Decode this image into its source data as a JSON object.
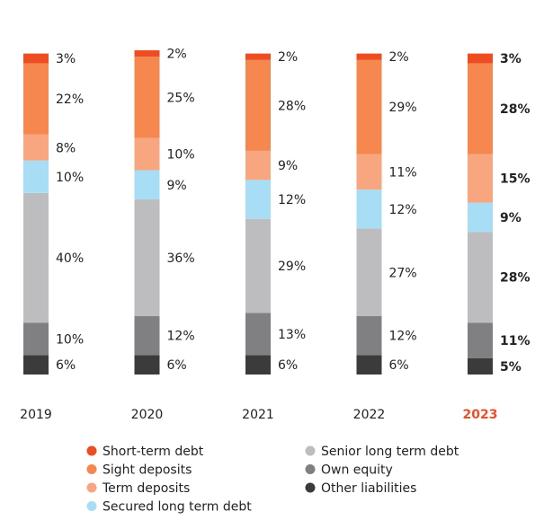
{
  "chart_data": {
    "type": "stacked_bar",
    "categories": [
      "2019",
      "2020",
      "2021",
      "2022",
      "2023"
    ],
    "series": [
      {
        "name": "Short-term debt",
        "color": "#ee4d22",
        "values": [
          3,
          2,
          2,
          2,
          3
        ],
        "value_labels": [
          "3%",
          "2%",
          "2%",
          "2%",
          "3%"
        ]
      },
      {
        "name": "Sight deposits",
        "color": "#f5874f",
        "values": [
          22,
          25,
          28,
          29,
          28
        ],
        "value_labels": [
          "22%",
          "25%",
          "28%",
          "29%",
          "28%"
        ]
      },
      {
        "name": "Term deposits",
        "color": "#f7a67f",
        "values": [
          8,
          10,
          9,
          11,
          15
        ],
        "value_labels": [
          "8%",
          "10%",
          "9%",
          "11%",
          "15%"
        ]
      },
      {
        "name": "Secured long term debt",
        "color": "#a8def5",
        "values": [
          10,
          9,
          12,
          12,
          9
        ],
        "value_labels": [
          "10%",
          "9%",
          "12%",
          "12%",
          "9%"
        ]
      },
      {
        "name": "Senior long term debt",
        "color": "#bdbdc0",
        "values": [
          40,
          36,
          29,
          27,
          28
        ],
        "value_labels": [
          "40%",
          "36%",
          "29%",
          "27%",
          "28%"
        ]
      },
      {
        "name": "Own equity",
        "color": "#808082",
        "values": [
          10,
          12,
          13,
          12,
          11
        ],
        "value_labels": [
          "10%",
          "12%",
          "13%",
          "12%",
          "11%"
        ]
      },
      {
        "name": "Other liabilities",
        "color": "#3b3b3b",
        "values": [
          6,
          6,
          6,
          6,
          5
        ],
        "value_labels": [
          "6%",
          "6%",
          "6%",
          "6%",
          "5%"
        ]
      }
    ],
    "ylim": [
      0,
      100
    ],
    "highlighted_categories": [
      4
    ],
    "highlight_color": "#e8502a"
  }
}
